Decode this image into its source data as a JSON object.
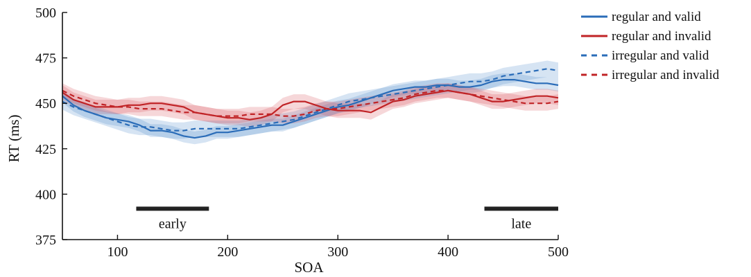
{
  "chart_data": {
    "type": "line",
    "xlabel": "SOA",
    "ylabel": "RT (ms)",
    "xlim": [
      50,
      500
    ],
    "ylim": [
      375,
      500
    ],
    "xticks": [
      100,
      200,
      300,
      400,
      500
    ],
    "yticks": [
      375,
      400,
      425,
      450,
      475,
      500
    ],
    "legend_position": "top-right",
    "grid": false,
    "x": [
      50,
      60,
      70,
      80,
      90,
      100,
      110,
      120,
      130,
      140,
      150,
      160,
      170,
      180,
      190,
      200,
      210,
      220,
      230,
      240,
      250,
      260,
      270,
      280,
      290,
      300,
      310,
      320,
      330,
      340,
      350,
      360,
      370,
      380,
      390,
      400,
      410,
      420,
      430,
      440,
      450,
      460,
      470,
      480,
      490,
      500
    ],
    "series": [
      {
        "name": "regular and valid",
        "color": "#2a6cb8",
        "dash": "solid",
        "values": [
          454,
          449,
          446,
          444,
          442,
          441,
          440,
          438,
          435,
          435,
          434,
          432,
          431,
          432,
          434,
          434,
          435,
          436,
          437,
          438,
          438,
          440,
          442,
          444,
          446,
          448,
          449,
          451,
          453,
          455,
          457,
          458,
          459,
          459,
          460,
          460,
          459,
          459,
          460,
          462,
          463,
          463,
          462,
          461,
          461,
          460
        ],
        "ci": 3.5
      },
      {
        "name": "regular and invalid",
        "color": "#c02326",
        "dash": "solid",
        "values": [
          456,
          452,
          450,
          448,
          448,
          448,
          449,
          449,
          450,
          450,
          449,
          448,
          445,
          444,
          443,
          442,
          442,
          441,
          442,
          444,
          449,
          451,
          451,
          449,
          447,
          446,
          446,
          446,
          445,
          448,
          451,
          452,
          454,
          455,
          456,
          457,
          456,
          455,
          453,
          451,
          451,
          452,
          453,
          454,
          454,
          453
        ],
        "ci": 4
      },
      {
        "name": "irregular and valid",
        "color": "#2a6cb8",
        "dash": "dashed",
        "values": [
          451,
          448,
          446,
          444,
          442,
          440,
          438,
          437,
          437,
          436,
          435,
          435,
          436,
          436,
          436,
          436,
          436,
          437,
          438,
          439,
          440,
          441,
          443,
          445,
          447,
          449,
          451,
          452,
          453,
          454,
          455,
          456,
          457,
          458,
          459,
          460,
          461,
          462,
          462,
          463,
          465,
          466,
          467,
          468,
          469,
          468
        ],
        "ci": 4.5
      },
      {
        "name": "irregular and invalid",
        "color": "#c02326",
        "dash": "dashed",
        "values": [
          457,
          454,
          452,
          450,
          449,
          448,
          448,
          447,
          447,
          447,
          446,
          445,
          445,
          444,
          443,
          443,
          443,
          444,
          444,
          444,
          443,
          443,
          444,
          446,
          447,
          447,
          448,
          449,
          450,
          451,
          452,
          453,
          455,
          456,
          457,
          457,
          456,
          455,
          454,
          453,
          452,
          451,
          450,
          450,
          450,
          451
        ],
        "ci": 4
      }
    ],
    "annotations": [
      {
        "label": "early",
        "x_start": 117,
        "x_end": 183,
        "y": 392
      },
      {
        "label": "late",
        "x_start": 433,
        "x_end": 500,
        "y": 392
      }
    ]
  }
}
